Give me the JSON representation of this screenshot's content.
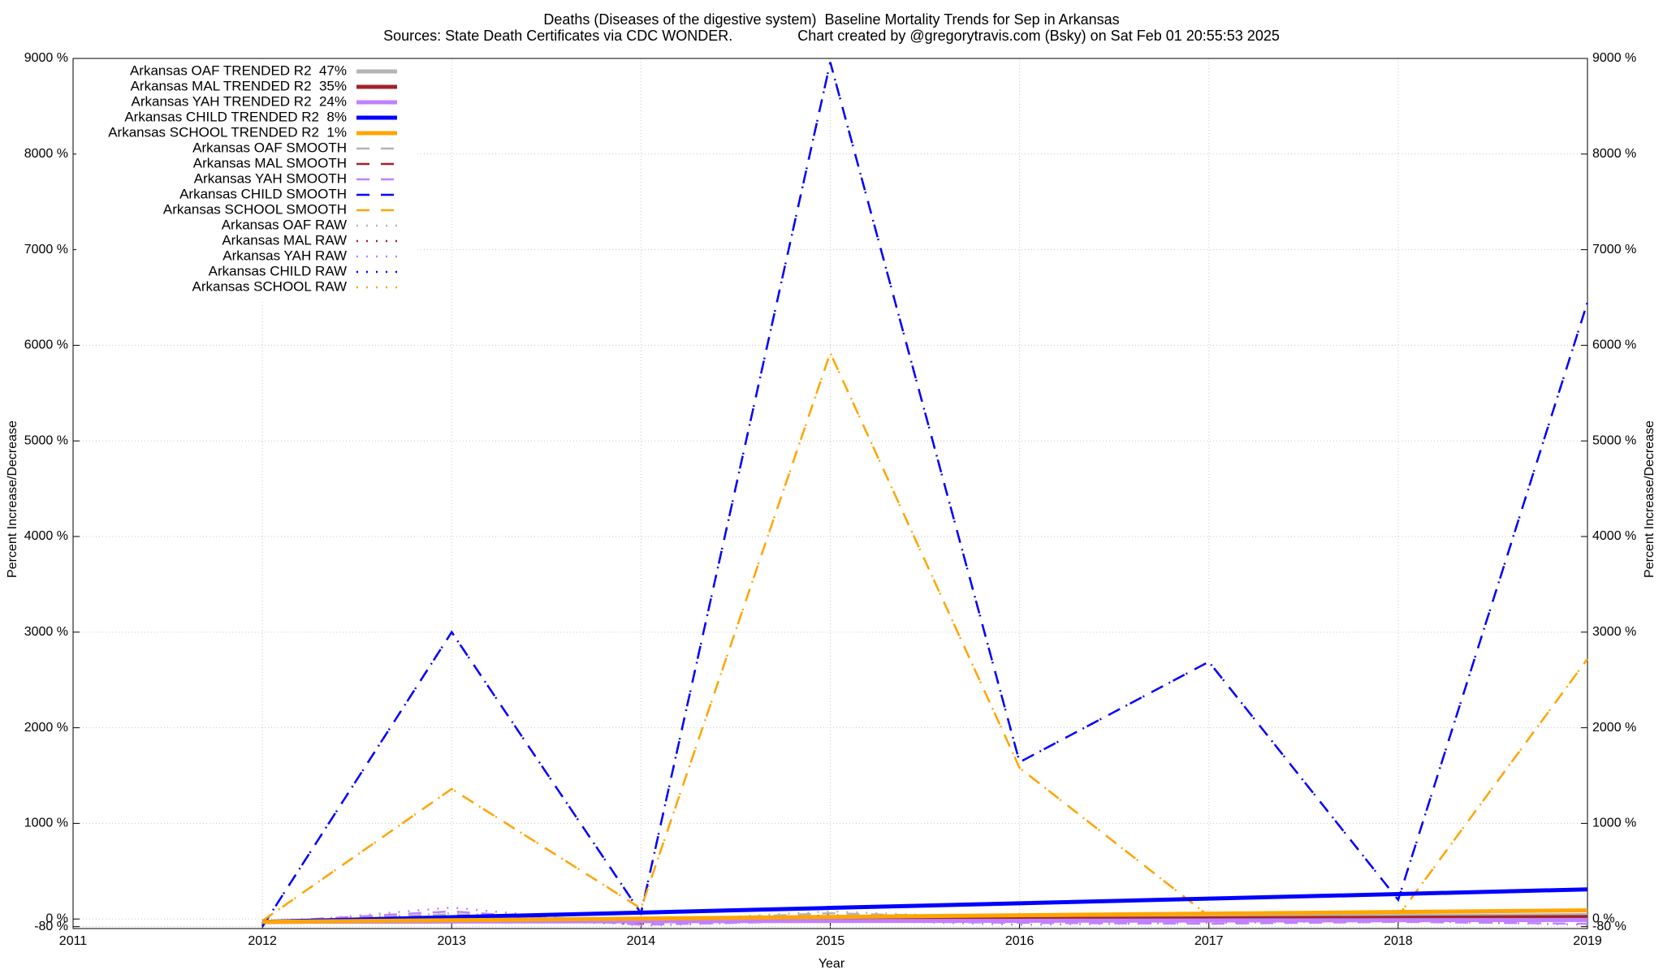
{
  "chart_data": {
    "type": "line",
    "title": "Deaths (Diseases of the digestive system)  Baseline Mortality Trends for Sep in Arkansas",
    "subtitle": "Sources: State Death Certificates via CDC WONDER.                Chart created by @gregorytravis.com (Bsky) on Sat Feb 01 20:55:53 2025",
    "x_label": "Year",
    "y_label": "Percent Increase/Decrease",
    "x": [
      2012,
      2013,
      2014,
      2015,
      2016,
      2017,
      2018,
      2019
    ],
    "xlim": [
      2011,
      2019
    ],
    "xticks": [
      2011,
      2012,
      2013,
      2014,
      2015,
      2016,
      2017,
      2018,
      2019
    ],
    "ylim": [
      -100,
      9000
    ],
    "yticks": [
      {
        "value": -80,
        "label": "-80 %"
      },
      {
        "value": 0,
        "label": "0 %"
      },
      {
        "value": 1000,
        "label": "1000 %"
      },
      {
        "value": 2000,
        "label": "2000 %"
      },
      {
        "value": 3000,
        "label": "3000 %"
      },
      {
        "value": 4000,
        "label": "4000 %"
      },
      {
        "value": 5000,
        "label": "5000 %"
      },
      {
        "value": 6000,
        "label": "6000 %"
      },
      {
        "value": 7000,
        "label": "7000 %"
      },
      {
        "value": 8000,
        "label": "8000 %"
      },
      {
        "value": 9000,
        "label": "9000 %"
      }
    ],
    "grid": true,
    "legend": "top-left",
    "series": [
      {
        "name": "Arkansas OAF TRENDED R2  47%",
        "style": "trend",
        "color": "#b4b4b4",
        "values": [
          -30,
          -20,
          -10,
          0,
          10,
          20,
          30,
          40
        ]
      },
      {
        "name": "Arkansas MAL TRENDED R2  35%",
        "style": "trend",
        "color": "#a3222a",
        "values": [
          -30,
          -23,
          -16,
          -9,
          -1,
          6,
          13,
          20
        ]
      },
      {
        "name": "Arkansas YAH TRENDED R2  24%",
        "style": "trend",
        "color": "#c080ff",
        "values": [
          -30,
          -27,
          -24,
          -21,
          -19,
          -16,
          -13,
          -10
        ]
      },
      {
        "name": "Arkansas CHILD TRENDED R2  8%",
        "style": "trend",
        "color": "#0000ff",
        "values": [
          -30,
          19,
          67,
          116,
          164,
          213,
          261,
          310
        ]
      },
      {
        "name": "Arkansas SCHOOL TRENDED R2  1%",
        "style": "trend",
        "color": "#ffa500",
        "values": [
          -30,
          -13,
          4,
          21,
          39,
          56,
          73,
          90
        ]
      },
      {
        "name": "Arkansas OAF SMOOTH",
        "style": "smooth",
        "color": "#b4b4b4",
        "values": [
          -30,
          50,
          -20,
          60,
          10,
          -10,
          30,
          20
        ]
      },
      {
        "name": "Arkansas MAL SMOOTH",
        "style": "smooth",
        "color": "#a3222a",
        "values": [
          -30,
          -10,
          -40,
          30,
          -20,
          0,
          -10,
          10
        ]
      },
      {
        "name": "Arkansas YAH SMOOTH",
        "style": "smooth",
        "color": "#c080ff",
        "values": [
          -30,
          80,
          -60,
          -20,
          -40,
          -50,
          -30,
          -50
        ]
      },
      {
        "name": "Arkansas CHILD SMOOTH",
        "style": "smooth",
        "color": "#0000ff",
        "values": [
          -80,
          3000,
          60,
          8960,
          1640,
          2690,
          200,
          6450
        ]
      },
      {
        "name": "Arkansas SCHOOL SMOOTH",
        "style": "smooth",
        "color": "#ffa500",
        "values": [
          -20,
          1360,
          110,
          5920,
          1580,
          30,
          30,
          2720
        ]
      },
      {
        "name": "Arkansas OAF RAW",
        "style": "raw",
        "color": "#b4b4b4",
        "values": [
          -20,
          60,
          -30,
          80,
          0,
          -20,
          40,
          30
        ]
      },
      {
        "name": "Arkansas MAL RAW",
        "style": "raw",
        "color": "#a3222a",
        "values": [
          -40,
          0,
          -50,
          40,
          -30,
          10,
          -20,
          20
        ]
      },
      {
        "name": "Arkansas YAH RAW",
        "style": "raw",
        "color": "#c080ff",
        "values": [
          -50,
          120,
          -70,
          -10,
          -60,
          -40,
          -20,
          -60
        ]
      },
      {
        "name": "Arkansas CHILD RAW",
        "style": "raw",
        "color": "#0000ff",
        "values": [
          -80,
          3000,
          60,
          8960,
          1640,
          2690,
          200,
          6450
        ]
      },
      {
        "name": "Arkansas SCHOOL RAW",
        "style": "raw",
        "color": "#ffa500",
        "values": [
          -20,
          1360,
          110,
          5920,
          1580,
          30,
          30,
          2720
        ]
      }
    ]
  }
}
